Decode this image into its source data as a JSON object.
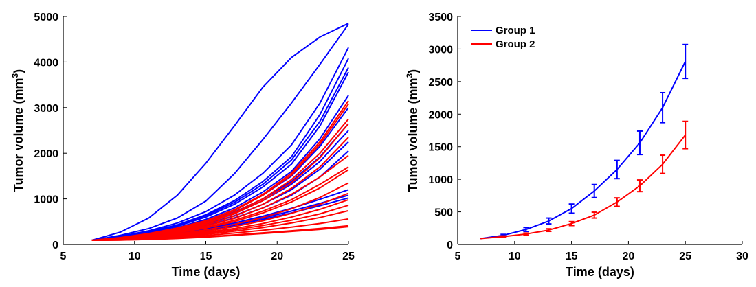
{
  "chart_data": [
    {
      "type": "line",
      "panel": "left",
      "xlabel": "Time (days)",
      "ylabel": "Tumor volume (mm",
      "ylabel_sup": "3",
      "ylabel_close": ")",
      "xlim": [
        5,
        25
      ],
      "ylim": [
        0,
        5000
      ],
      "xticks": [
        5,
        10,
        15,
        20,
        25
      ],
      "yticks": [
        0,
        1000,
        2000,
        3000,
        4000,
        5000
      ],
      "grid": false,
      "x": [
        7,
        9,
        11,
        13,
        15,
        17,
        19,
        21,
        23,
        25
      ],
      "series_colors": {
        "group1": "#0000ff",
        "group2": "#ff0000"
      },
      "series": [
        {
          "group": "group1",
          "values": [
            90,
            270,
            580,
            1080,
            1780,
            2600,
            3450,
            4100,
            4550,
            4850
          ]
        },
        {
          "group": "group1",
          "values": [
            90,
            200,
            350,
            580,
            950,
            1550,
            2300,
            3100,
            3950,
            4830
          ]
        },
        {
          "group": "group1",
          "values": [
            90,
            180,
            300,
            470,
            720,
            1080,
            1560,
            2180,
            3100,
            4320
          ]
        },
        {
          "group": "group1",
          "values": [
            90,
            170,
            280,
            430,
            650,
            960,
            1380,
            1920,
            2850,
            4080
          ]
        },
        {
          "group": "group1",
          "values": [
            90,
            165,
            270,
            420,
            630,
            920,
            1320,
            1850,
            2700,
            3880
          ]
        },
        {
          "group": "group1",
          "values": [
            90,
            160,
            260,
            400,
            600,
            880,
            1260,
            1760,
            2600,
            3780
          ]
        },
        {
          "group": "group1",
          "values": [
            90,
            150,
            240,
            370,
            550,
            800,
            1150,
            1600,
            2320,
            3270
          ]
        },
        {
          "group": "group1",
          "values": [
            90,
            145,
            230,
            350,
            520,
            760,
            1080,
            1500,
            2150,
            3000
          ]
        },
        {
          "group": "group1",
          "values": [
            90,
            140,
            220,
            330,
            490,
            710,
            1000,
            1380,
            1920,
            2650
          ]
        },
        {
          "group": "group1",
          "values": [
            90,
            135,
            215,
            320,
            470,
            680,
            960,
            1320,
            1820,
            2500
          ]
        },
        {
          "group": "group1",
          "values": [
            90,
            130,
            205,
            305,
            440,
            630,
            880,
            1200,
            1650,
            2250
          ]
        },
        {
          "group": "group1",
          "values": [
            90,
            125,
            195,
            290,
            410,
            580,
            800,
            1080,
            1480,
            2050
          ]
        },
        {
          "group": "group1",
          "values": [
            90,
            120,
            180,
            255,
            350,
            470,
            620,
            790,
            990,
            1200
          ]
        },
        {
          "group": "group1",
          "values": [
            90,
            115,
            170,
            240,
            330,
            440,
            580,
            730,
            900,
            1080
          ]
        },
        {
          "group": "group1",
          "values": [
            90,
            110,
            160,
            230,
            315,
            420,
            550,
            690,
            850,
            1020
          ]
        },
        {
          "group": "group2",
          "values": [
            90,
            150,
            240,
            360,
            520,
            760,
            1100,
            1560,
            2250,
            3150
          ]
        },
        {
          "group": "group2",
          "values": [
            90,
            145,
            230,
            350,
            510,
            740,
            1080,
            1520,
            2200,
            3080
          ]
        },
        {
          "group": "group2",
          "values": [
            90,
            140,
            220,
            330,
            480,
            700,
            1000,
            1420,
            2000,
            2750
          ]
        },
        {
          "group": "group2",
          "values": [
            90,
            135,
            210,
            315,
            460,
            670,
            960,
            1350,
            1900,
            2650
          ]
        },
        {
          "group": "group2",
          "values": [
            90,
            130,
            200,
            300,
            430,
            620,
            880,
            1230,
            1700,
            2350
          ]
        },
        {
          "group": "group2",
          "values": [
            90,
            125,
            190,
            280,
            400,
            570,
            800,
            1100,
            1480,
            1950
          ]
        },
        {
          "group": "group2",
          "values": [
            90,
            120,
            180,
            265,
            375,
            530,
            730,
            980,
            1320,
            1700
          ]
        },
        {
          "group": "group2",
          "values": [
            90,
            118,
            175,
            255,
            360,
            500,
            690,
            930,
            1240,
            1640
          ]
        },
        {
          "group": "group2",
          "values": [
            90,
            112,
            160,
            230,
            320,
            440,
            590,
            780,
            1030,
            1350
          ]
        },
        {
          "group": "group2",
          "values": [
            90,
            108,
            150,
            210,
            290,
            390,
            520,
            680,
            880,
            1120
          ]
        },
        {
          "group": "group2",
          "values": [
            90,
            105,
            140,
            195,
            265,
            350,
            460,
            600,
            770,
            980
          ]
        },
        {
          "group": "group2",
          "values": [
            90,
            102,
            132,
            180,
            245,
            320,
            415,
            530,
            670,
            860
          ]
        },
        {
          "group": "group2",
          "values": [
            90,
            100,
            125,
            165,
            220,
            290,
            370,
            470,
            590,
            740
          ]
        },
        {
          "group": "group2",
          "values": [
            90,
            98,
            118,
            150,
            195,
            250,
            310,
            380,
            460,
            560
          ]
        },
        {
          "group": "group2",
          "values": [
            90,
            96,
            110,
            135,
            170,
            210,
            255,
            300,
            350,
            410
          ]
        },
        {
          "group": "group2",
          "values": [
            90,
            95,
            108,
            130,
            160,
            200,
            240,
            285,
            330,
            390
          ]
        }
      ]
    },
    {
      "type": "line",
      "panel": "right",
      "xlabel": "Time (days)",
      "ylabel": "Tumor volume (mm",
      "ylabel_sup": "3",
      "ylabel_close": ")",
      "xlim": [
        5,
        30
      ],
      "ylim": [
        0,
        3500
      ],
      "xticks": [
        5,
        10,
        15,
        20,
        25,
        30
      ],
      "yticks": [
        0,
        500,
        1000,
        1500,
        2000,
        2500,
        3000,
        3500
      ],
      "grid": false,
      "legend_position": "top-left",
      "x": [
        7,
        9,
        11,
        13,
        15,
        17,
        19,
        21,
        23,
        25
      ],
      "series": [
        {
          "name": "Group 1",
          "color": "#0000ff",
          "values": [
            90,
            140,
            230,
            360,
            550,
            820,
            1150,
            1560,
            2100,
            2810
          ],
          "errors": [
            0,
            15,
            30,
            45,
            70,
            100,
            140,
            180,
            230,
            260
          ]
        },
        {
          "name": "Group 2",
          "color": "#ff0000",
          "values": [
            90,
            120,
            160,
            220,
            320,
            450,
            650,
            900,
            1230,
            1680
          ],
          "errors": [
            0,
            10,
            15,
            20,
            30,
            45,
            65,
            90,
            140,
            210
          ]
        }
      ]
    }
  ]
}
